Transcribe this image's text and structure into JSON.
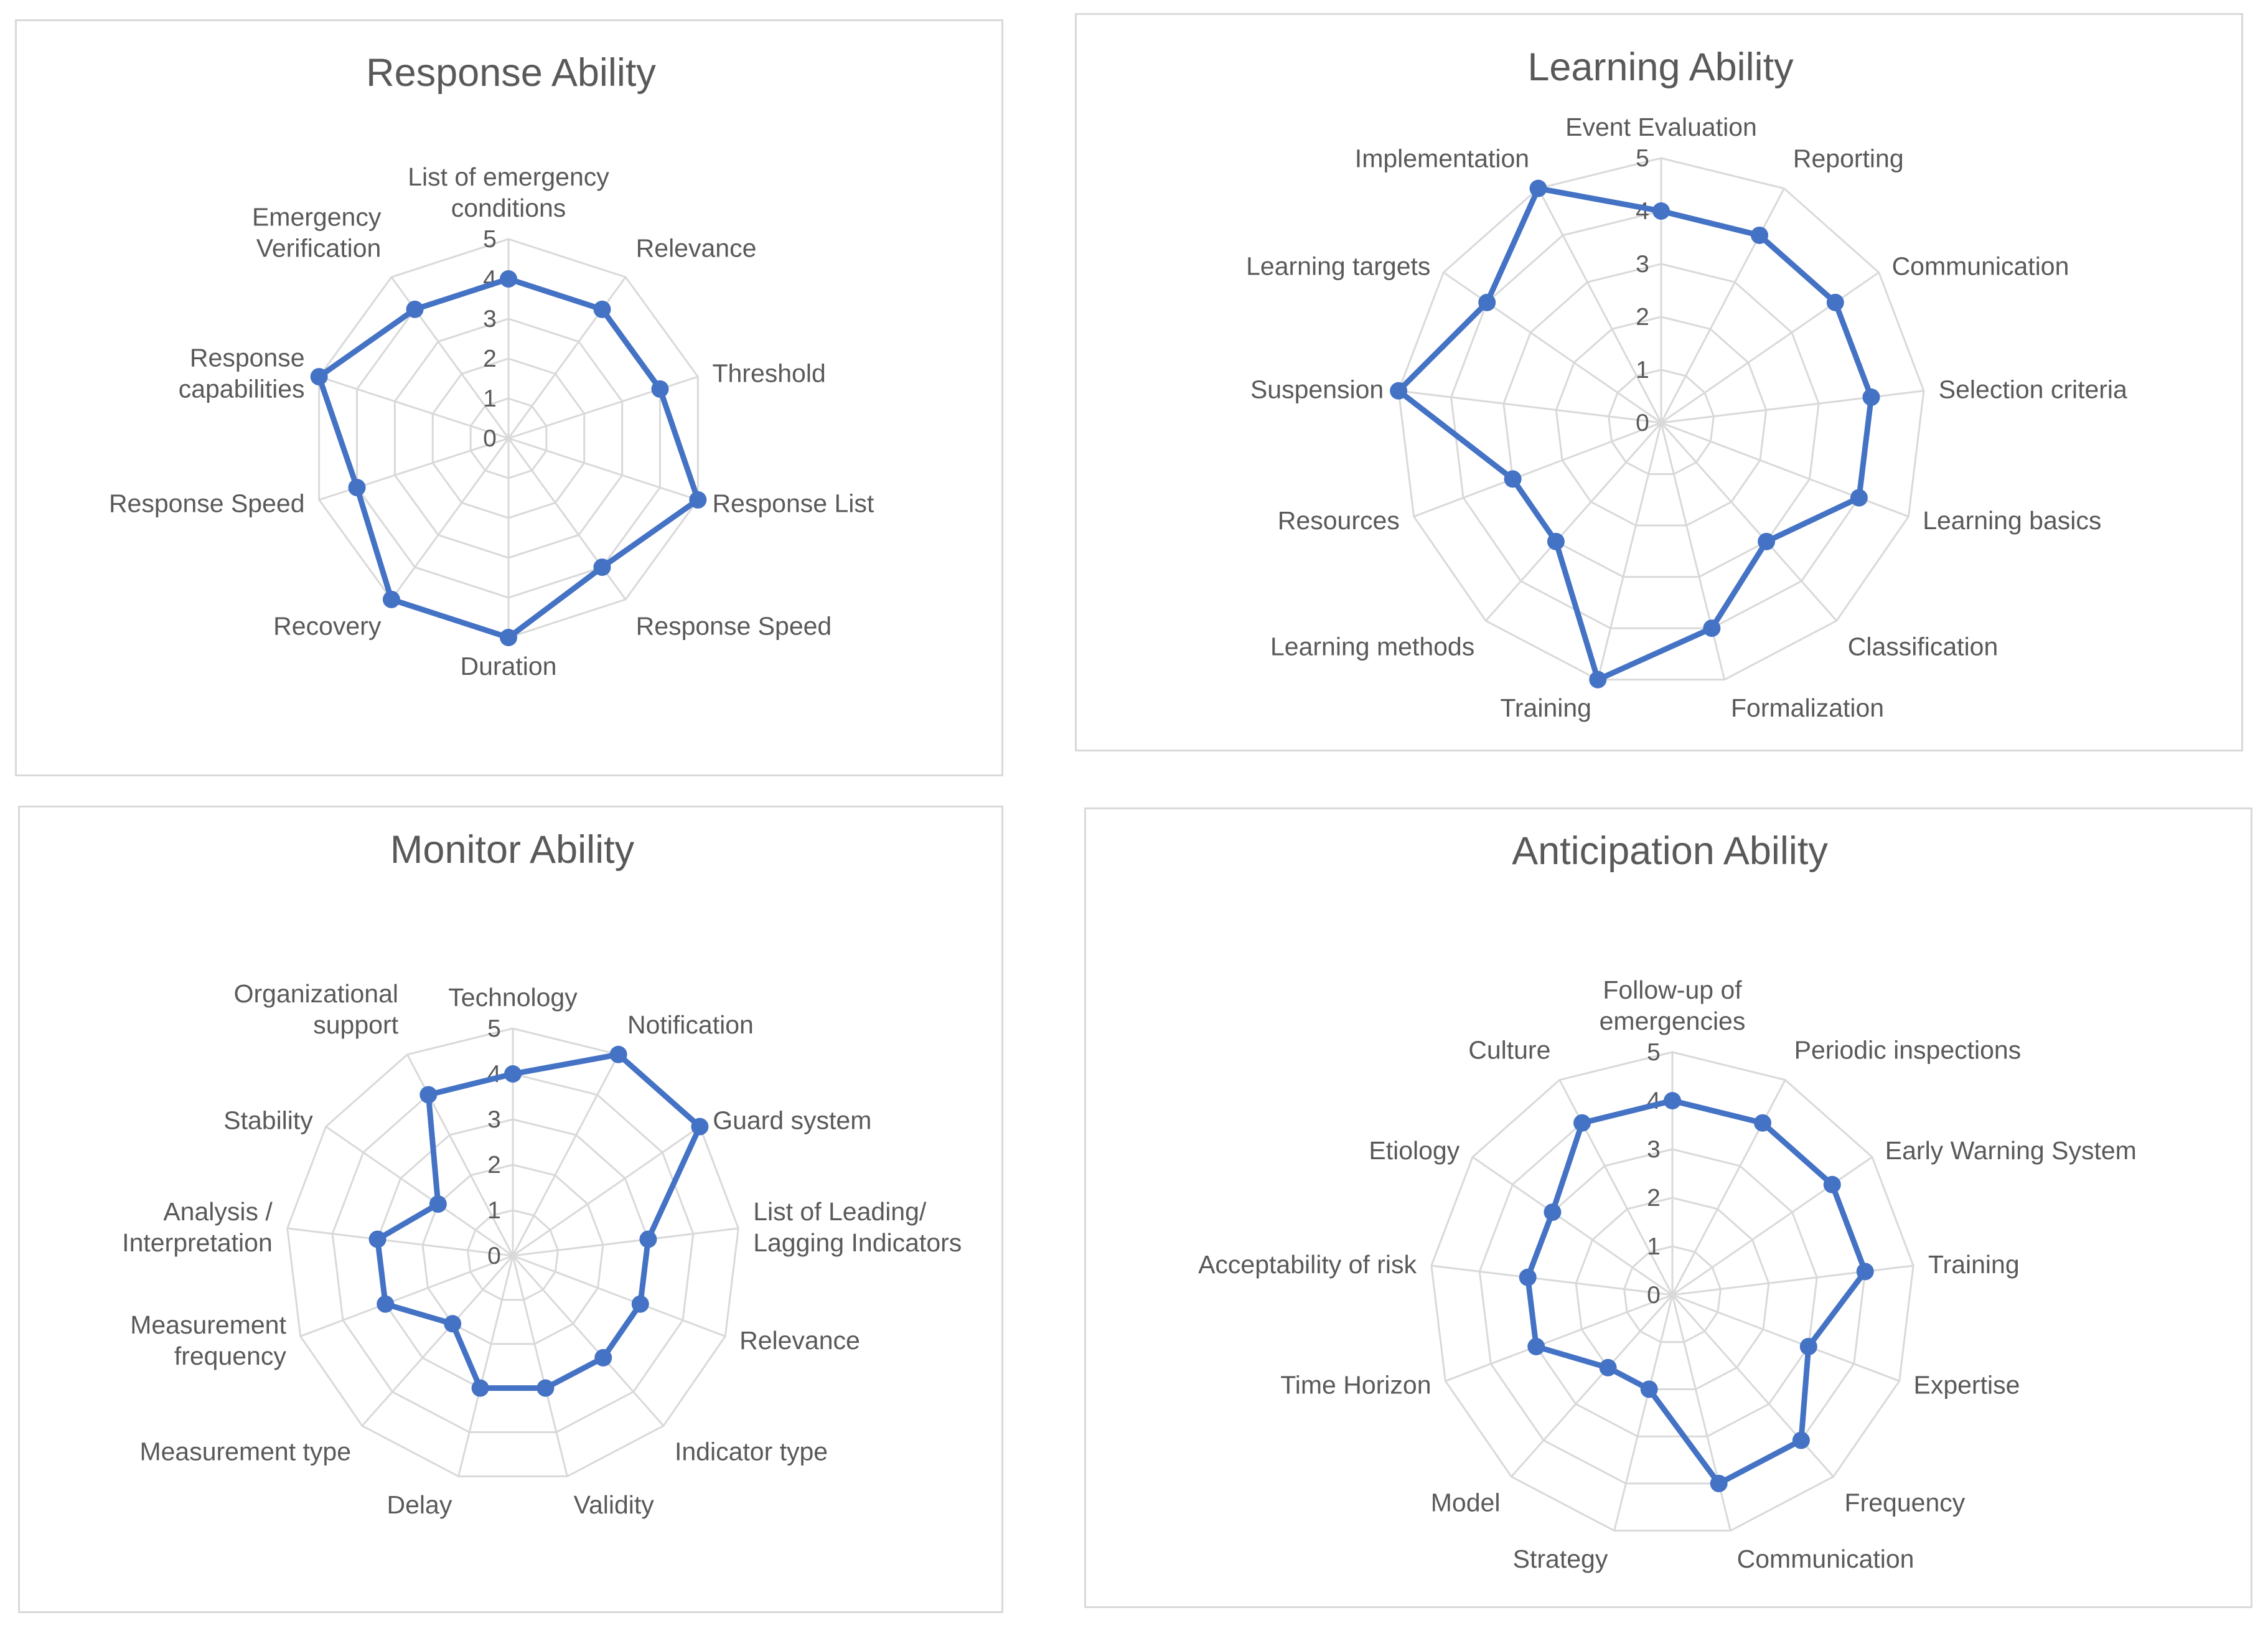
{
  "colors": {
    "series": "#4472c4",
    "grid": "#d9d9d9",
    "text": "#595959"
  },
  "chart_data": [
    {
      "type": "radar",
      "title": "Response Ability",
      "ylim": [
        0,
        5
      ],
      "ticks": [
        "0",
        "1",
        "2",
        "3",
        "4",
        "5"
      ],
      "categories": [
        "List of emergency conditions",
        "Relevance",
        "Threshold",
        "Response List",
        "Response Speed",
        "Duration",
        "Recovery",
        "Response Speed",
        "Response capabilities",
        "Emergency Verification"
      ],
      "category_lines": [
        [
          "List of emergency",
          "conditions"
        ],
        [
          "Relevance"
        ],
        [
          "Threshold"
        ],
        [
          "Response List"
        ],
        [
          "Response Speed"
        ],
        [
          "Duration"
        ],
        [
          "Recovery"
        ],
        [
          "Response Speed"
        ],
        [
          "Response",
          "capabilities"
        ],
        [
          "Emergency",
          "Verification"
        ]
      ],
      "values": [
        4,
        4,
        4,
        5,
        4,
        5,
        5,
        4,
        5,
        4
      ]
    },
    {
      "type": "radar",
      "title": "Learning Ability",
      "ylim": [
        0,
        5
      ],
      "ticks": [
        "0",
        "1",
        "2",
        "3",
        "4",
        "5"
      ],
      "categories": [
        "Event Evaluation",
        "Reporting",
        "Communication",
        "Selection criteria",
        "Learning basics",
        "Classification",
        "Formalization",
        "Training",
        "Learning methods",
        "Resources",
        "Suspension",
        "Learning targets",
        "Implementation"
      ],
      "category_lines": [
        [
          "Event Evaluation"
        ],
        [
          "Reporting"
        ],
        [
          "Communication"
        ],
        [
          "Selection criteria"
        ],
        [
          "Learning basics"
        ],
        [
          "Classification"
        ],
        [
          "Formalization"
        ],
        [
          "Training"
        ],
        [
          "Learning methods"
        ],
        [
          "Resources"
        ],
        [
          "Suspension"
        ],
        [
          "Learning targets"
        ],
        [
          "Implementation"
        ]
      ],
      "values": [
        4,
        4,
        4,
        4,
        4,
        3,
        4,
        5,
        3,
        3,
        5,
        4,
        5
      ]
    },
    {
      "type": "radar",
      "title": "Monitor Ability",
      "ylim": [
        0,
        5
      ],
      "ticks": [
        "0",
        "1",
        "2",
        "3",
        "4",
        "5"
      ],
      "categories": [
        "Technology",
        "Notification",
        "Guard system",
        "List of Leading/ Lagging Indicators",
        "Relevance",
        "Indicator type",
        "Validity",
        "Delay",
        "Measurement type",
        "Measurement frequency",
        "Analysis / Interpretation",
        "Stability",
        "Organizational support"
      ],
      "category_lines": [
        [
          "Technology"
        ],
        [
          "Notification"
        ],
        [
          "Guard system"
        ],
        [
          "List of Leading/",
          "Lagging Indicators"
        ],
        [
          "Relevance"
        ],
        [
          "Indicator type"
        ],
        [
          "Validity"
        ],
        [
          "Delay"
        ],
        [
          "Measurement type"
        ],
        [
          "Measurement",
          "frequency"
        ],
        [
          "Analysis /",
          "Interpretation"
        ],
        [
          "Stability"
        ],
        [
          "Organizational",
          "support"
        ]
      ],
      "values": [
        4,
        5,
        5,
        3,
        3,
        3,
        3,
        3,
        2,
        3,
        3,
        2,
        4
      ]
    },
    {
      "type": "radar",
      "title": "Anticipation Ability",
      "ylim": [
        0,
        5
      ],
      "ticks": [
        "0",
        "1",
        "2",
        "3",
        "4",
        "5"
      ],
      "categories": [
        "Follow-up of emergencies",
        "Periodic inspections",
        "Early Warning System",
        "Training",
        "Expertise",
        "Frequency",
        "Communication",
        "Strategy",
        "Model",
        "Time Horizon",
        "Acceptability of risk",
        "Etiology",
        "Culture"
      ],
      "category_lines": [
        [
          "Follow-up of",
          "emergencies"
        ],
        [
          "Periodic inspections"
        ],
        [
          "Early Warning System"
        ],
        [
          "Training"
        ],
        [
          "Expertise"
        ],
        [
          "Frequency"
        ],
        [
          "Communication"
        ],
        [
          "Strategy"
        ],
        [
          "Model"
        ],
        [
          "Time Horizon"
        ],
        [
          "Acceptability of risk"
        ],
        [
          "Etiology"
        ],
        [
          "Culture"
        ]
      ],
      "values": [
        4,
        4,
        4,
        4,
        3,
        4,
        4,
        2,
        2,
        3,
        3,
        3,
        4
      ]
    }
  ]
}
